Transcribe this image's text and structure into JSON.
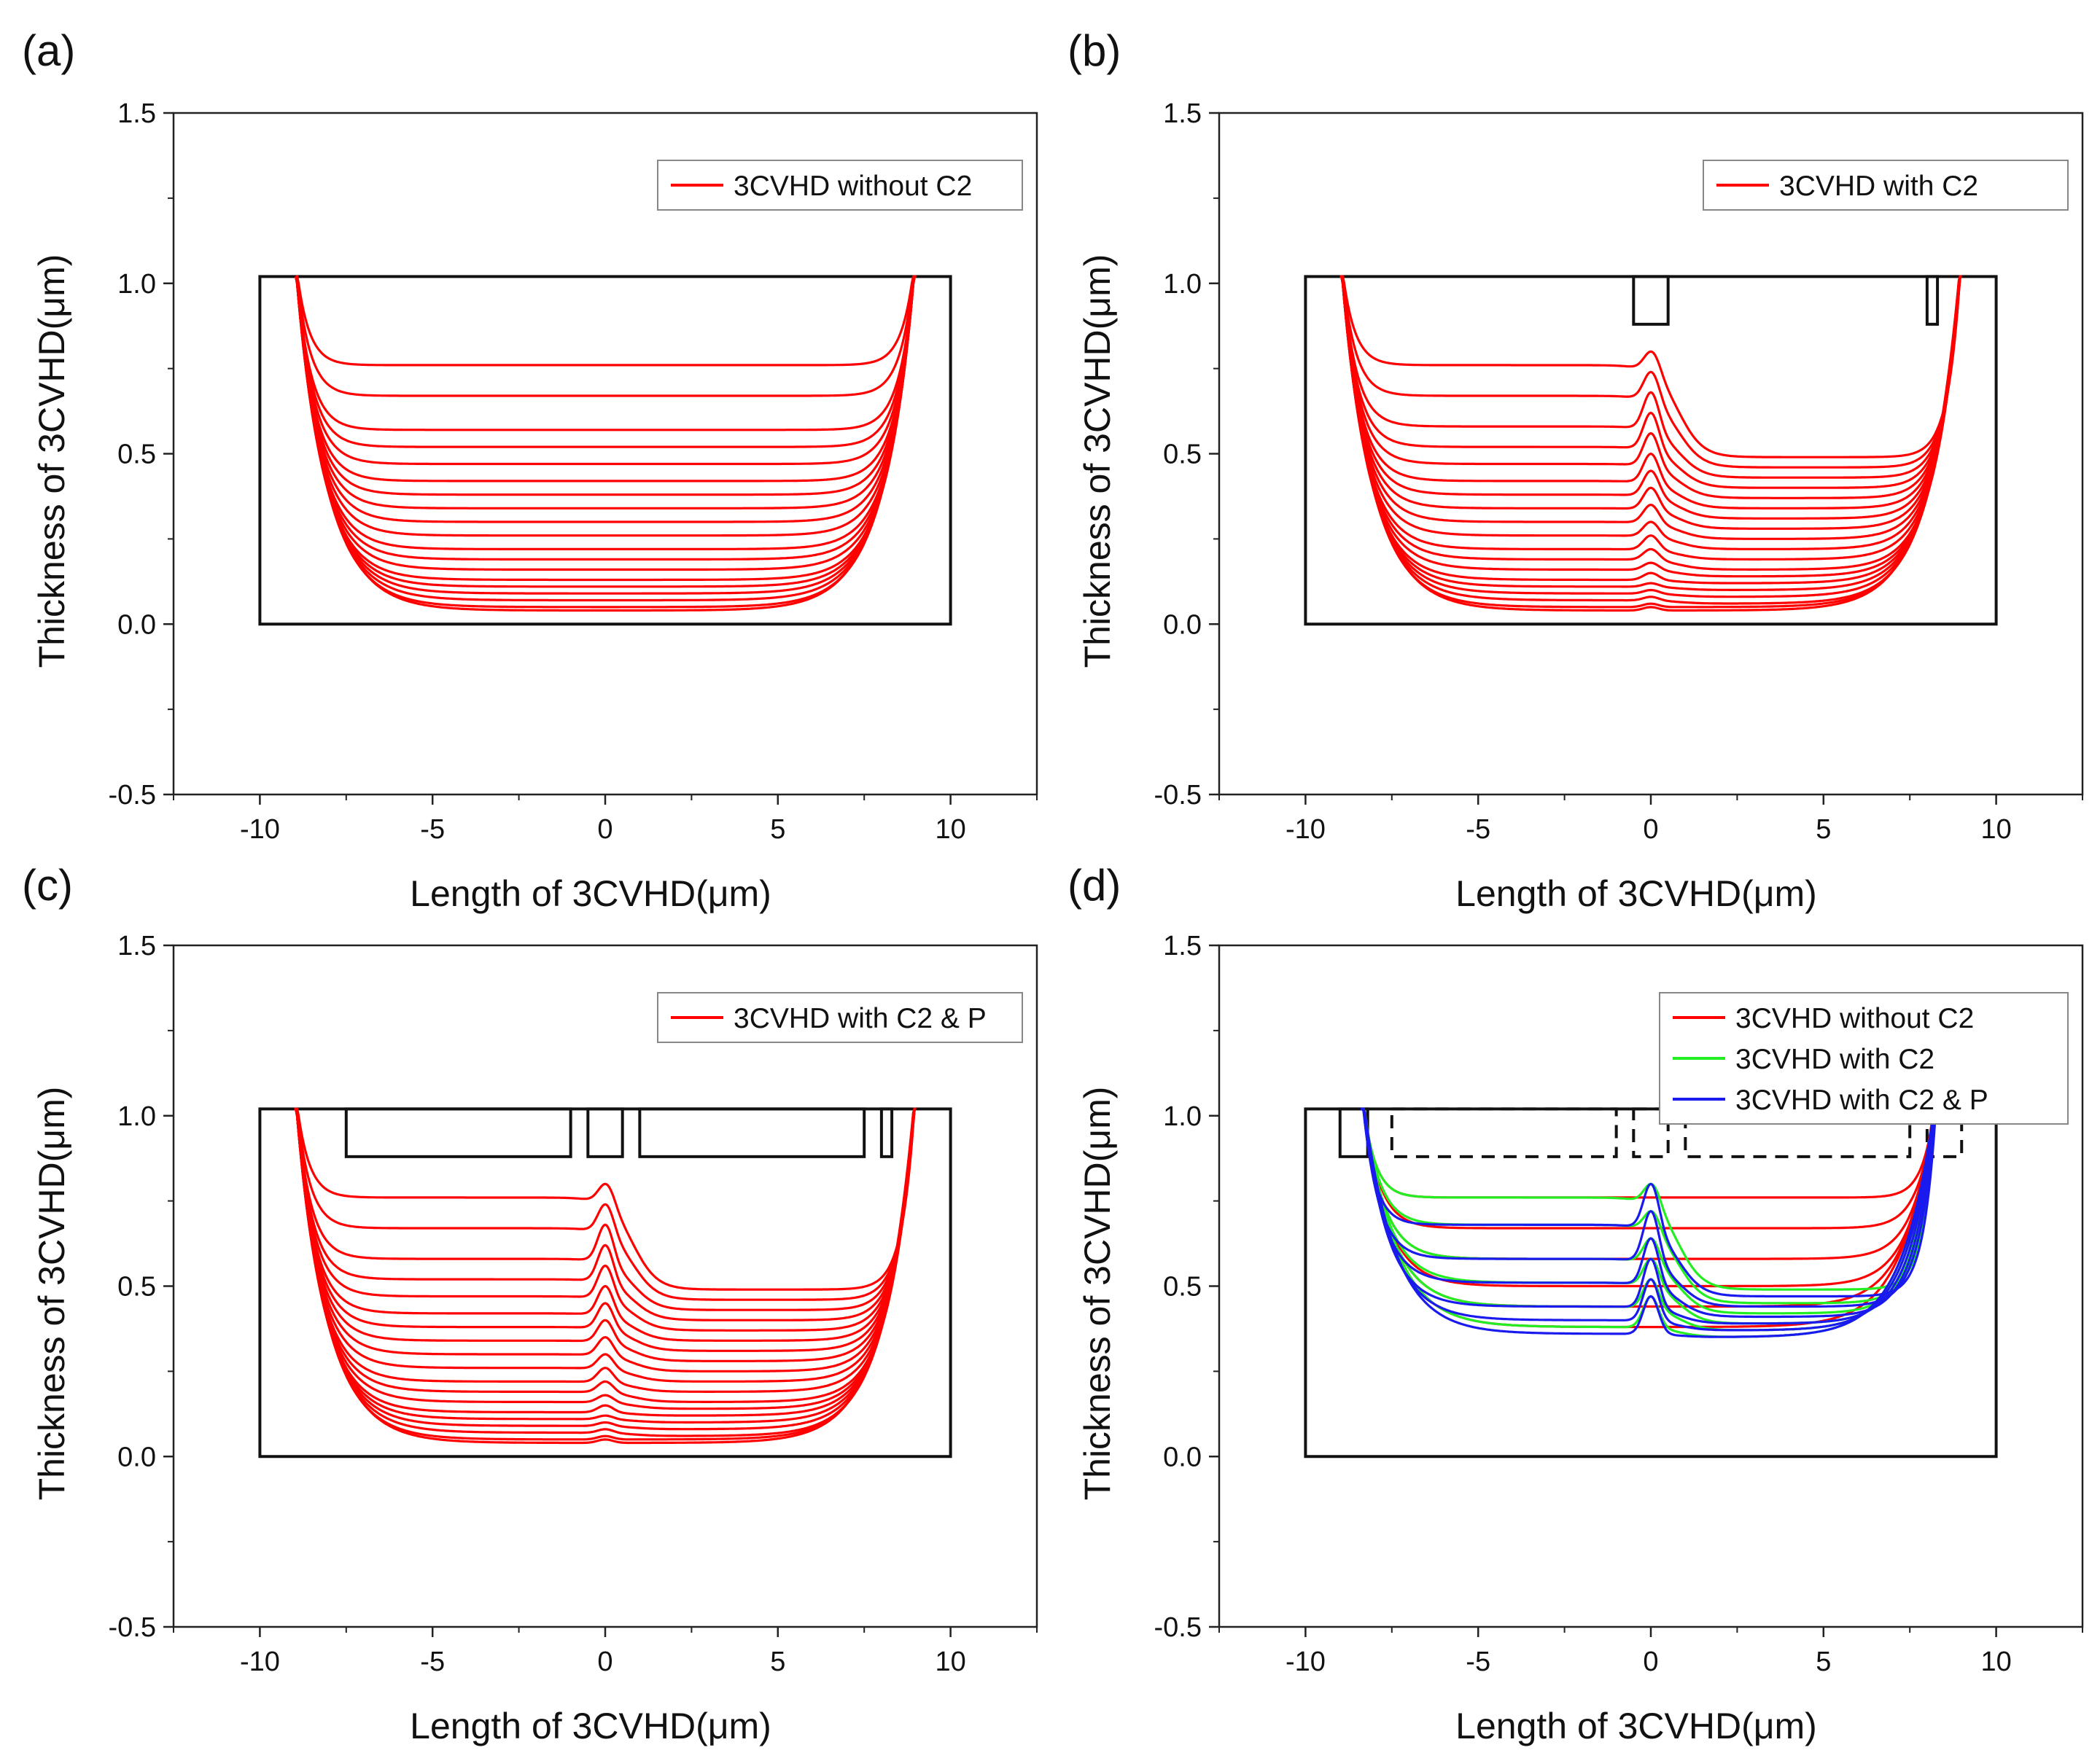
{
  "chart_data": [
    {
      "type": "line",
      "panel_label": "(a)",
      "xlabel": "Length of 3CVHD(μm)",
      "ylabel": "Thickness of 3CVHD(μm)",
      "xlim": [
        -12.5,
        12.5
      ],
      "ylim": [
        -0.5,
        1.5
      ],
      "xticks": [
        "-10",
        "-5",
        "0",
        "5",
        "10"
      ],
      "yticks": [
        "-0.5",
        "0.0",
        "0.5",
        "1.0",
        "1.5"
      ],
      "legend": [
        {
          "name": "3CVHD without C2",
          "color": "#ff0000"
        }
      ],
      "legend_position": "top-right",
      "device_outline": {
        "x": [
          -10,
          10
        ],
        "y": [
          0.0,
          1.02
        ]
      },
      "contacts": [],
      "series": [
        {
          "name": "3CVHD without C2",
          "color": "#ff0000",
          "feature": "plateau",
          "contour_levels": [
            0.76,
            0.67,
            0.57,
            0.52,
            0.47,
            0.42,
            0.38,
            0.34,
            0.3,
            0.26,
            0.22,
            0.19,
            0.16,
            0.13,
            0.11,
            0.09,
            0.07,
            0.05,
            0.04
          ],
          "left_wall_x": -9.0,
          "right_wall_x": 9.0
        }
      ]
    },
    {
      "type": "line",
      "panel_label": "(b)",
      "xlabel": "Length of 3CVHD(μm)",
      "ylabel": "Thickness of 3CVHD(μm)",
      "xlim": [
        -12.5,
        12.5
      ],
      "ylim": [
        -0.5,
        1.5
      ],
      "xticks": [
        "-10",
        "-5",
        "0",
        "5",
        "10"
      ],
      "yticks": [
        "-0.5",
        "0.0",
        "0.5",
        "1.0",
        "1.5"
      ],
      "legend": [
        {
          "name": "3CVHD with C2",
          "color": "#ff0000"
        }
      ],
      "legend_position": "top-right",
      "device_outline": {
        "x": [
          -10,
          10
        ],
        "y": [
          0.0,
          1.02
        ]
      },
      "contacts": [
        {
          "x": [
            -0.5,
            0.5
          ],
          "y": [
            0.88,
            1.02
          ],
          "dashed": false
        },
        {
          "x": [
            8.0,
            8.3
          ],
          "y": [
            0.88,
            1.02
          ],
          "dashed": false
        }
      ],
      "series": [
        {
          "name": "3CVHD with C2",
          "color": "#ff0000",
          "feature": "peak",
          "left_levels": [
            0.76,
            0.67,
            0.58,
            0.52,
            0.47,
            0.42,
            0.38,
            0.34,
            0.3,
            0.26,
            0.22,
            0.19,
            0.16,
            0.13,
            0.11,
            0.09,
            0.07,
            0.05,
            0.04
          ],
          "right_levels": [
            0.49,
            0.46,
            0.43,
            0.4,
            0.37,
            0.34,
            0.31,
            0.28,
            0.25,
            0.22,
            0.19,
            0.16,
            0.14,
            0.12,
            0.1,
            0.08,
            0.06,
            0.05,
            0.04
          ],
          "peak_heights": [
            0.8,
            0.74,
            0.68,
            0.62,
            0.56,
            0.5,
            0.45,
            0.4,
            0.35,
            0.3,
            0.26,
            0.22,
            0.18,
            0.15,
            0.12,
            0.1,
            0.08,
            0.06,
            0.05
          ],
          "left_wall_x": -9.0,
          "right_wall_x": 9.0
        }
      ]
    },
    {
      "type": "line",
      "panel_label": "(c)",
      "xlabel": "Length of 3CVHD(μm)",
      "ylabel": "Thickness of 3CVHD(μm)",
      "xlim": [
        -12.5,
        12.5
      ],
      "ylim": [
        -0.5,
        1.5
      ],
      "xticks": [
        "-10",
        "-5",
        "0",
        "5",
        "10"
      ],
      "yticks": [
        "-0.5",
        "0.0",
        "0.5",
        "1.0",
        "1.5"
      ],
      "legend": [
        {
          "name": "3CVHD with C2 & P",
          "color": "#ff0000"
        }
      ],
      "legend_position": "top-right",
      "device_outline": {
        "x": [
          -10,
          10
        ],
        "y": [
          0.0,
          1.02
        ]
      },
      "contacts": [
        {
          "x": [
            -7.5,
            -1.0
          ],
          "y": [
            0.88,
            1.02
          ],
          "dashed": false
        },
        {
          "x": [
            -0.5,
            0.5
          ],
          "y": [
            0.88,
            1.02
          ],
          "dashed": false
        },
        {
          "x": [
            1.0,
            7.5
          ],
          "y": [
            0.88,
            1.02
          ],
          "dashed": false
        },
        {
          "x": [
            8.0,
            8.3
          ],
          "y": [
            0.88,
            1.02
          ],
          "dashed": false
        }
      ],
      "series": [
        {
          "name": "3CVHD with C2 & P",
          "color": "#ff0000",
          "feature": "peak",
          "left_levels": [
            0.76,
            0.67,
            0.58,
            0.52,
            0.47,
            0.42,
            0.38,
            0.34,
            0.3,
            0.26,
            0.22,
            0.19,
            0.16,
            0.13,
            0.11,
            0.09,
            0.07,
            0.05,
            0.04
          ],
          "right_levels": [
            0.49,
            0.46,
            0.43,
            0.4,
            0.37,
            0.34,
            0.31,
            0.28,
            0.25,
            0.22,
            0.19,
            0.16,
            0.14,
            0.12,
            0.1,
            0.08,
            0.06,
            0.05,
            0.04
          ],
          "peak_heights": [
            0.8,
            0.74,
            0.68,
            0.62,
            0.56,
            0.5,
            0.45,
            0.4,
            0.35,
            0.3,
            0.26,
            0.22,
            0.18,
            0.15,
            0.12,
            0.1,
            0.08,
            0.06,
            0.05
          ],
          "left_wall_x": -9.0,
          "right_wall_x": 9.0
        }
      ]
    },
    {
      "type": "line",
      "panel_label": "(d)",
      "xlabel": "Length of 3CVHD(μm)",
      "ylabel": "Thickness of 3CVHD(μm)",
      "xlim": [
        -12.5,
        12.5
      ],
      "ylim": [
        -0.5,
        1.5
      ],
      "xticks": [
        "-10",
        "-5",
        "0",
        "5",
        "10"
      ],
      "yticks": [
        "-0.5",
        "0.0",
        "0.5",
        "1.0",
        "1.5"
      ],
      "legend": [
        {
          "name": "3CVHD without C2",
          "color": "#ff0000"
        },
        {
          "name": "3CVHD with C2",
          "color": "#22ee22"
        },
        {
          "name": "3CVHD with C2 & P",
          "color": "#1a1aee"
        }
      ],
      "legend_position": "top-right",
      "device_outline": {
        "x": [
          -10,
          10
        ],
        "y": [
          0.0,
          1.02
        ]
      },
      "contacts": [
        {
          "x": [
            -9.0,
            -8.2
          ],
          "y": [
            0.88,
            1.02
          ],
          "dashed": false
        },
        {
          "x": [
            -7.5,
            -1.0
          ],
          "y": [
            0.88,
            1.02
          ],
          "dashed": true
        },
        {
          "x": [
            -0.5,
            0.5
          ],
          "y": [
            0.88,
            1.02
          ],
          "dashed": true
        },
        {
          "x": [
            1.0,
            7.5
          ],
          "y": [
            0.88,
            1.02
          ],
          "dashed": true
        },
        {
          "x": [
            8.0,
            9.0
          ],
          "y": [
            0.88,
            1.02
          ],
          "dashed": true
        }
      ],
      "series": [
        {
          "name": "3CVHD without C2",
          "color": "#ff0000",
          "feature": "plateau",
          "contour_levels": [
            0.76,
            0.67,
            0.58,
            0.5,
            0.44,
            0.38
          ],
          "left_wall_x": -8.4,
          "right_wall_x": 8.3
        },
        {
          "name": "3CVHD with C2",
          "color": "#22ee22",
          "feature": "peak",
          "left_levels": [
            0.76,
            0.68,
            0.58,
            0.51,
            0.44,
            0.38
          ],
          "right_levels": [
            0.49,
            0.45,
            0.42,
            0.39,
            0.37,
            0.35
          ],
          "peak_heights": [
            0.8,
            0.72,
            0.64,
            0.58,
            0.52,
            0.47
          ],
          "left_wall_x": -8.4,
          "right_wall_x": 8.3
        },
        {
          "name": "3CVHD with C2 & P",
          "color": "#1a1aee",
          "feature": "peak",
          "left_levels": [
            0.68,
            0.58,
            0.51,
            0.44,
            0.4,
            0.36
          ],
          "right_levels": [
            0.47,
            0.44,
            0.41,
            0.39,
            0.37,
            0.35
          ],
          "peak_heights": [
            0.8,
            0.72,
            0.64,
            0.58,
            0.52,
            0.47
          ],
          "left_wall_x": -8.4,
          "right_wall_x": 8.3
        }
      ]
    }
  ]
}
